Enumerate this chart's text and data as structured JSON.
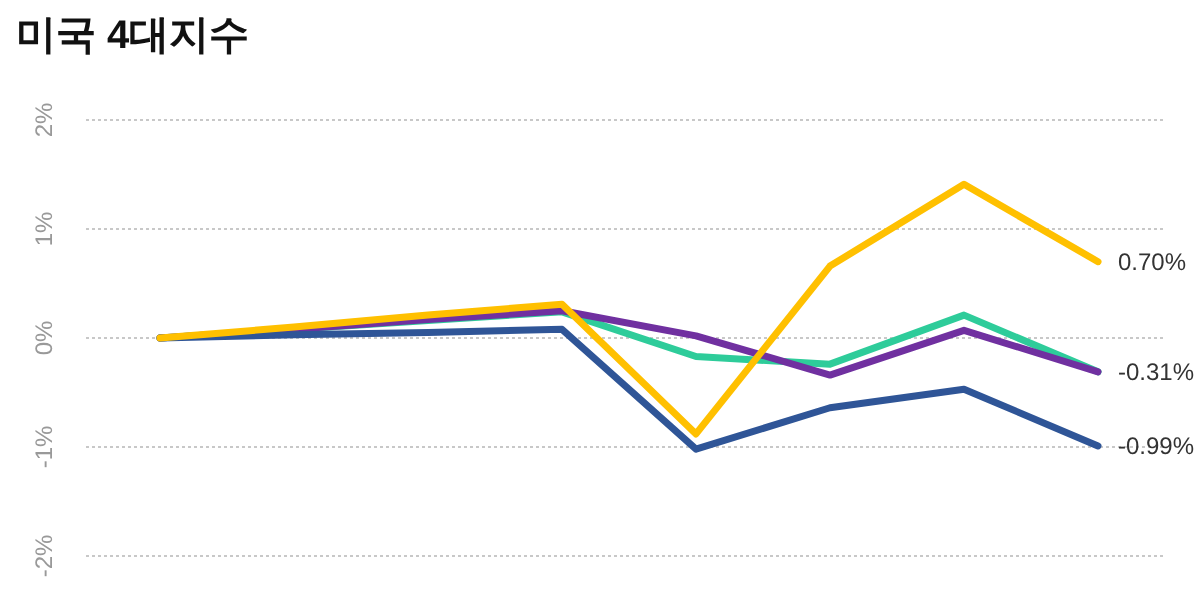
{
  "chart_data": {
    "type": "line",
    "title": "미국 4대지수",
    "categories": [
      null,
      null,
      null,
      null,
      null,
      null,
      null,
      null
    ],
    "series": [
      {
        "color": "#2ecc9a",
        "values": [
          0,
          0.08,
          0.16,
          0.24,
          -0.17,
          -0.24,
          0.21,
          -0.31
        ],
        "value_labels": [
          null,
          null,
          null,
          null,
          null,
          null,
          null,
          null
        ]
      },
      {
        "color": "#7030a0",
        "values": [
          0,
          0.08,
          0.17,
          0.25,
          0.02,
          -0.34,
          0.07,
          -0.31
        ],
        "value_labels": [
          null,
          null,
          null,
          null,
          null,
          null,
          null,
          "-0.31%"
        ]
      },
      {
        "color": "#2f5597",
        "values": [
          0,
          0.03,
          0.05,
          0.08,
          -1.02,
          -0.64,
          -0.47,
          -0.99
        ],
        "value_labels": [
          null,
          null,
          null,
          null,
          null,
          null,
          null,
          "-0.99%"
        ]
      },
      {
        "color": "#ffc000",
        "values": [
          0,
          0.1,
          0.21,
          0.31,
          -0.88,
          0.66,
          1.41,
          0.7
        ],
        "value_labels": [
          null,
          null,
          null,
          null,
          null,
          null,
          null,
          "0.70%"
        ]
      }
    ],
    "ylim": [
      -2,
      2
    ],
    "yticks": [
      {
        "value": 2,
        "label": "2%"
      },
      {
        "value": 1,
        "label": "1%"
      },
      {
        "value": 0,
        "label": "0%"
      },
      {
        "value": -1,
        "label": "-1%"
      },
      {
        "value": -2,
        "label": "-2%"
      }
    ],
    "grid": "y",
    "marker": "none",
    "line_style": "solid",
    "tick_labels": "y"
  }
}
